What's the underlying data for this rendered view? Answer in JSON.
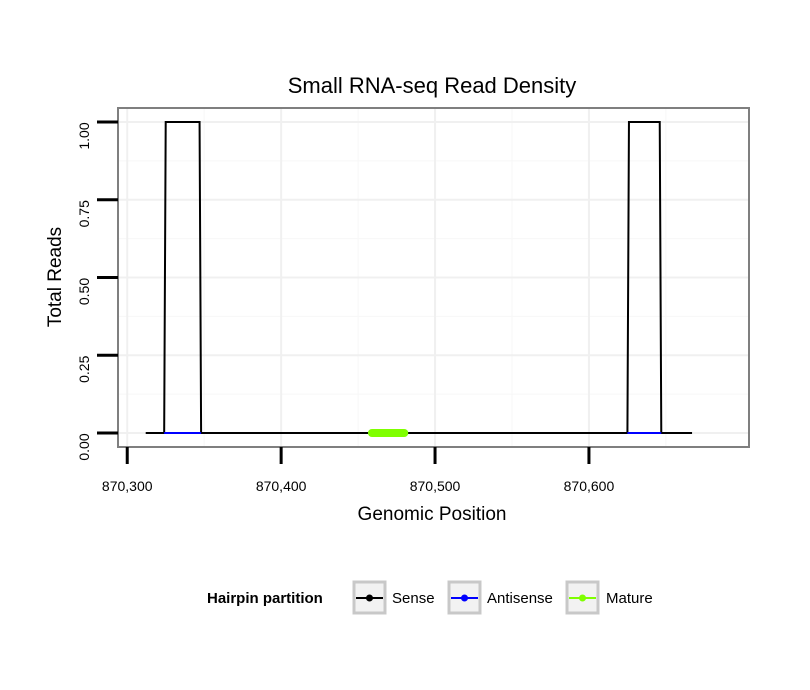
{
  "chart_data": {
    "type": "line",
    "title": "Small RNA-seq Read Density",
    "xlabel": "Genomic Position",
    "ylabel": "Total Reads",
    "xlim": [
      870294,
      870704
    ],
    "ylim": [
      -0.045,
      1.045
    ],
    "x_ticks": [
      870300,
      870400,
      870500,
      870600
    ],
    "x_tick_labels": [
      "870,300",
      "870,400",
      "870,500",
      "870,600"
    ],
    "y_ticks": [
      0,
      0.25,
      0.5,
      0.75,
      1.0
    ],
    "y_tick_labels": [
      "0.00",
      "0.25",
      "0.50",
      "0.75",
      "1.00"
    ],
    "grid": true,
    "legend": {
      "title": "Hairpin partition",
      "placement": "bottom",
      "entries": [
        {
          "name": "Sense",
          "color": "#000000"
        },
        {
          "name": "Antisense",
          "color": "#0000ff"
        },
        {
          "name": "Mature",
          "color": "#7fff00"
        }
      ]
    },
    "series": [
      {
        "name": "Sense",
        "color": "#000000",
        "x": [
          870312,
          870324,
          870325,
          870347,
          870348,
          870625,
          870626,
          870646,
          870647,
          870667
        ],
        "y": [
          0,
          0,
          1,
          1,
          0,
          0,
          1,
          1,
          0,
          0
        ]
      },
      {
        "name": "Antisense",
        "segments": [
          [
            870324,
            870348
          ],
          [
            870625,
            870647
          ]
        ],
        "y": 0,
        "color": "#0000ff"
      },
      {
        "name": "Mature",
        "segments": [
          [
            870459,
            870480
          ]
        ],
        "y": 0,
        "color": "#7fff00"
      }
    ]
  }
}
